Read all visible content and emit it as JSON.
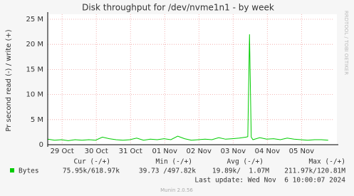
{
  "chart_data": {
    "type": "line",
    "title": "Disk throughput for /dev/nvme1n1 - by week",
    "y_label": "Pr second read (-) / write (+)",
    "side_label": "RRDTOOL / TOBI OETIKER",
    "xlim": [
      0,
      8.35
    ],
    "xticks": [
      {
        "value": 0.42,
        "label": "29 Oct"
      },
      {
        "value": 1.42,
        "label": "30 Oct"
      },
      {
        "value": 2.42,
        "label": "31 Oct"
      },
      {
        "value": 3.42,
        "label": "01 Nov"
      },
      {
        "value": 4.42,
        "label": "02 Nov"
      },
      {
        "value": 5.42,
        "label": "03 Nov"
      },
      {
        "value": 6.42,
        "label": "04 Nov"
      },
      {
        "value": 7.42,
        "label": "05 Nov"
      }
    ],
    "ylim": [
      0,
      25000000
    ],
    "yticks": [
      0,
      {
        "value": 5000000,
        "label": "5 M"
      },
      {
        "value": 10000000,
        "label": "10 M"
      },
      {
        "value": 15000000,
        "label": "15 M"
      },
      {
        "value": 20000000,
        "label": "20 M"
      },
      {
        "value": 25000000,
        "label": "25 M"
      }
    ],
    "grid": true,
    "x": [
      0,
      0.2,
      0.4,
      0.6,
      0.8,
      1.0,
      1.2,
      1.4,
      1.6,
      1.8,
      2.0,
      2.2,
      2.4,
      2.6,
      2.8,
      3.0,
      3.2,
      3.4,
      3.6,
      3.8,
      4.0,
      4.2,
      4.4,
      4.6,
      4.8,
      5.0,
      5.2,
      5.4,
      5.6,
      5.8,
      5.85,
      5.9,
      5.95,
      6.0,
      6.2,
      6.4,
      6.6,
      6.8,
      7.0,
      7.2,
      7.4,
      7.6,
      7.8,
      8.0,
      8.2
    ],
    "series": [
      {
        "name": "Bytes",
        "color": "#00cc00",
        "values": [
          1100000,
          900000,
          1000000,
          800000,
          1000000,
          900000,
          1000000,
          900000,
          1500000,
          1200000,
          1000000,
          900000,
          1000000,
          1300000,
          900000,
          1100000,
          1000000,
          1200000,
          1000000,
          1700000,
          1200000,
          900000,
          1000000,
          1100000,
          1000000,
          1400000,
          1100000,
          1200000,
          1300000,
          1500000,
          1600000,
          22000000,
          1500000,
          1000000,
          1400000,
          1100000,
          1200000,
          1000000,
          1300000,
          1100000,
          1000000,
          900000,
          1000000,
          1000000,
          900000
        ]
      }
    ],
    "legend_table": {
      "headers": [
        "Cur (-/+)",
        "Min (-/+)",
        "Avg (-/+)",
        "Max (-/+)"
      ],
      "cells": [
        "75.95k/618.97k",
        "39.73 /497.82k",
        "19.89k/  1.07M",
        "211.97k/120.81M"
      ]
    },
    "last_update": "Last update: Wed Nov  6 10:00:07 2024",
    "footer": "Munin 2.0.56"
  }
}
